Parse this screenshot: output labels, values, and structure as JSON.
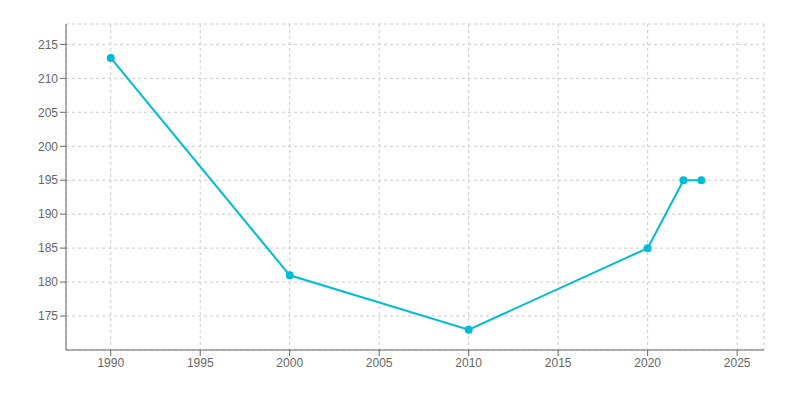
{
  "chart_data": {
    "type": "line",
    "x": [
      1990,
      2000,
      2010,
      2020,
      2022,
      2023
    ],
    "values": [
      213,
      181,
      173,
      185,
      195,
      195
    ],
    "color": "#00BCD4",
    "marker": "circle",
    "xlim": [
      1987.5,
      2026.5
    ],
    "xticks": [
      1990,
      1995,
      2000,
      2005,
      2010,
      2015,
      2020,
      2025
    ],
    "ylim": [
      170,
      218
    ],
    "yticks": [
      175,
      180,
      185,
      190,
      195,
      200,
      205,
      210,
      215
    ],
    "grid": true
  }
}
